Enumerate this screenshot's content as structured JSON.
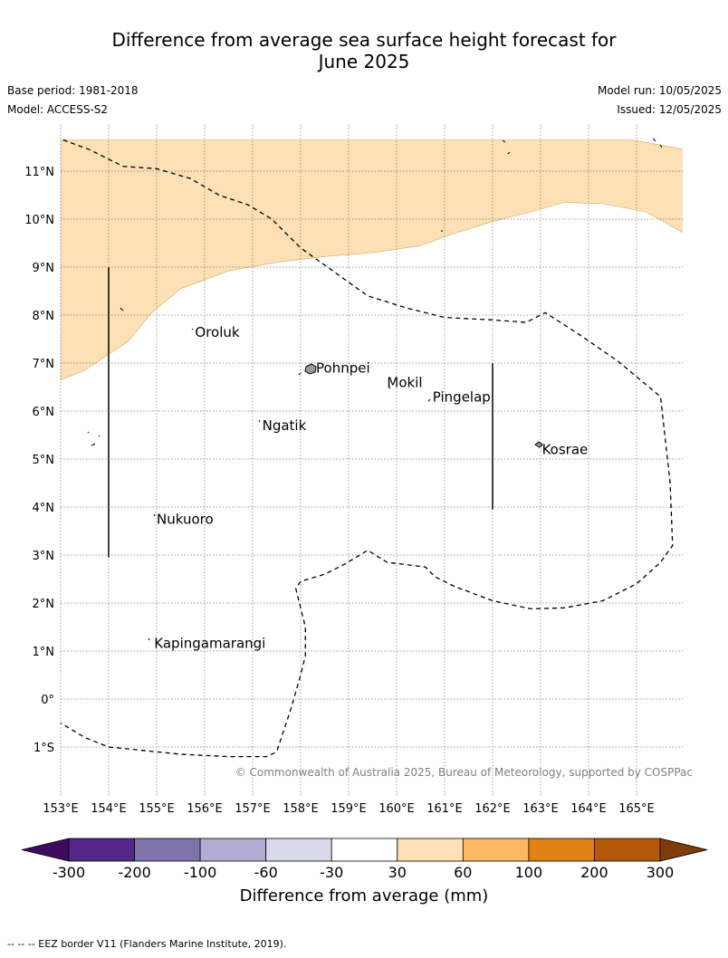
{
  "title_line1": "Difference from average sea surface height forecast for",
  "title_line2": "June 2025",
  "base_period": "Base period: 1981-2018",
  "model": "Model: ACCESS-S2",
  "model_run": "Model run: 10/05/2025",
  "issued": "Issued: 12/05/2025",
  "copyright": "© Commonwealth of Australia 2025, Bureau of Meteorology, supported by COSPPac",
  "map": {
    "lon_range": [
      153,
      166
    ],
    "lat_range": [
      -2,
      12
    ],
    "lon_ticks": [
      {
        "value": 153,
        "label": "153°E"
      },
      {
        "value": 154,
        "label": "154°E"
      },
      {
        "value": 155,
        "label": "155°E"
      },
      {
        "value": 156,
        "label": "156°E"
      },
      {
        "value": 157,
        "label": "157°E"
      },
      {
        "value": 158,
        "label": "158°E"
      },
      {
        "value": 159,
        "label": "159°E"
      },
      {
        "value": 160,
        "label": "160°E"
      },
      {
        "value": 161,
        "label": "161°E"
      },
      {
        "value": 162,
        "label": "162°E"
      },
      {
        "value": 163,
        "label": "163°E"
      },
      {
        "value": 164,
        "label": "164°E"
      },
      {
        "value": 165,
        "label": "165°E"
      }
    ],
    "lat_ticks": [
      {
        "value": 11,
        "label": "11°N"
      },
      {
        "value": 10,
        "label": "10°N"
      },
      {
        "value": 9,
        "label": "9°N"
      },
      {
        "value": 8,
        "label": "8°N"
      },
      {
        "value": 7,
        "label": "7°N"
      },
      {
        "value": 6,
        "label": "6°N"
      },
      {
        "value": 5,
        "label": "5°N"
      },
      {
        "value": 4,
        "label": "4°N"
      },
      {
        "value": 3,
        "label": "3°N"
      },
      {
        "value": 2,
        "label": "2°N"
      },
      {
        "value": 1,
        "label": "1°N"
      },
      {
        "value": 0,
        "label": "0°"
      },
      {
        "value": -1,
        "label": "1°S"
      }
    ],
    "anomaly_fill_color": "#fde0b6",
    "anomaly_region": [
      [
        153,
        11.65
      ],
      [
        153,
        6.65
      ],
      [
        153.5,
        6.85
      ],
      [
        154.4,
        7.45
      ],
      [
        154.9,
        8.05
      ],
      [
        155.5,
        8.55
      ],
      [
        156.5,
        8.92
      ],
      [
        157.5,
        9.1
      ],
      [
        158.5,
        9.22
      ],
      [
        159.5,
        9.3
      ],
      [
        160.5,
        9.45
      ],
      [
        161.2,
        9.7
      ],
      [
        162,
        9.95
      ],
      [
        162.8,
        10.15
      ],
      [
        163.5,
        10.35
      ],
      [
        164.3,
        10.32
      ],
      [
        165.2,
        10.15
      ],
      [
        166,
        9.7
      ],
      [
        166,
        11.45
      ],
      [
        165.2,
        11.6
      ],
      [
        164.9,
        11.65
      ]
    ],
    "eez_border": [
      [
        [
          153.05,
          11.65
        ],
        [
          153.6,
          11.45
        ],
        [
          154.3,
          11.1
        ],
        [
          155,
          11.05
        ],
        [
          155.7,
          10.85
        ],
        [
          156.3,
          10.5
        ],
        [
          156.9,
          10.3
        ],
        [
          157.4,
          10
        ],
        [
          158,
          9.4
        ],
        [
          158.7,
          8.9
        ],
        [
          159.4,
          8.4
        ],
        [
          160.2,
          8.15
        ],
        [
          161,
          7.95
        ],
        [
          162,
          7.9
        ],
        [
          162.7,
          7.85
        ],
        [
          163.1,
          8.05
        ],
        [
          163.8,
          7.6
        ],
        [
          164.6,
          7.05
        ],
        [
          165.5,
          6.3
        ],
        [
          165.7,
          4.5
        ],
        [
          165.75,
          3.2
        ],
        [
          165.5,
          2.85
        ],
        [
          165,
          2.4
        ],
        [
          164.3,
          2.05
        ],
        [
          163.5,
          1.9
        ],
        [
          162.8,
          1.88
        ],
        [
          162,
          2.05
        ],
        [
          161.2,
          2.35
        ],
        [
          160.8,
          2.55
        ],
        [
          160.6,
          2.75
        ],
        [
          160.2,
          2.8
        ],
        [
          159.8,
          2.85
        ],
        [
          159.4,
          3.1
        ],
        [
          158.9,
          2.8
        ],
        [
          158.5,
          2.6
        ],
        [
          158,
          2.45
        ],
        [
          157.9,
          2.3
        ],
        [
          158,
          1.9
        ],
        [
          158.1,
          1.5
        ],
        [
          158.1,
          0.9
        ],
        [
          158,
          0.5
        ],
        [
          157.8,
          -0.2
        ],
        [
          157.5,
          -1.1
        ],
        [
          157.3,
          -1.2
        ],
        [
          156.5,
          -1.2
        ],
        [
          155.5,
          -1.15
        ],
        [
          154.5,
          -1.05
        ],
        [
          154,
          -1
        ],
        [
          153.5,
          -0.8
        ],
        [
          153,
          -0.5
        ]
      ]
    ],
    "meridian_lines": [
      {
        "lon": 154,
        "lat_from": 2.95,
        "lat_to": 9
      },
      {
        "lon": 162,
        "lat_from": 3.95,
        "lat_to": 7
      }
    ],
    "places": [
      {
        "name": "Oroluk",
        "lon": 155.8,
        "lat": 7.55
      },
      {
        "name": "Pohnpei",
        "lon": 158.32,
        "lat": 6.8
      },
      {
        "name": "Mokil",
        "lon": 159.8,
        "lat": 6.5
      },
      {
        "name": "Pingelap",
        "lon": 160.75,
        "lat": 6.2
      },
      {
        "name": "Ngatik",
        "lon": 157.2,
        "lat": 5.6
      },
      {
        "name": "Kosrae",
        "lon": 163.03,
        "lat": 5.1
      },
      {
        "name": "Nukuoro",
        "lon": 155,
        "lat": 3.65
      },
      {
        "name": "Kapingamarangi",
        "lon": 154.95,
        "lat": 1.07
      }
    ]
  },
  "colorbar": {
    "title": "Difference from average (mm)",
    "low_extend_color": "#3d0a5e",
    "high_extend_color": "#7f3b08",
    "bins": [
      {
        "color": "#542788"
      },
      {
        "color": "#8073ac"
      },
      {
        "color": "#b2abd2"
      },
      {
        "color": "#d8daeb"
      },
      {
        "color": "#ffffff"
      },
      {
        "color": "#fee0b6"
      },
      {
        "color": "#fdb863"
      },
      {
        "color": "#e08214"
      },
      {
        "color": "#b35806"
      }
    ],
    "tick_labels": [
      "-300",
      "-200",
      "-100",
      "-60",
      "-30",
      "30",
      "60",
      "100",
      "200",
      "300"
    ]
  },
  "footer": "--  --  -- EEZ border V11 (Flanders Marine Institute, 2019)."
}
